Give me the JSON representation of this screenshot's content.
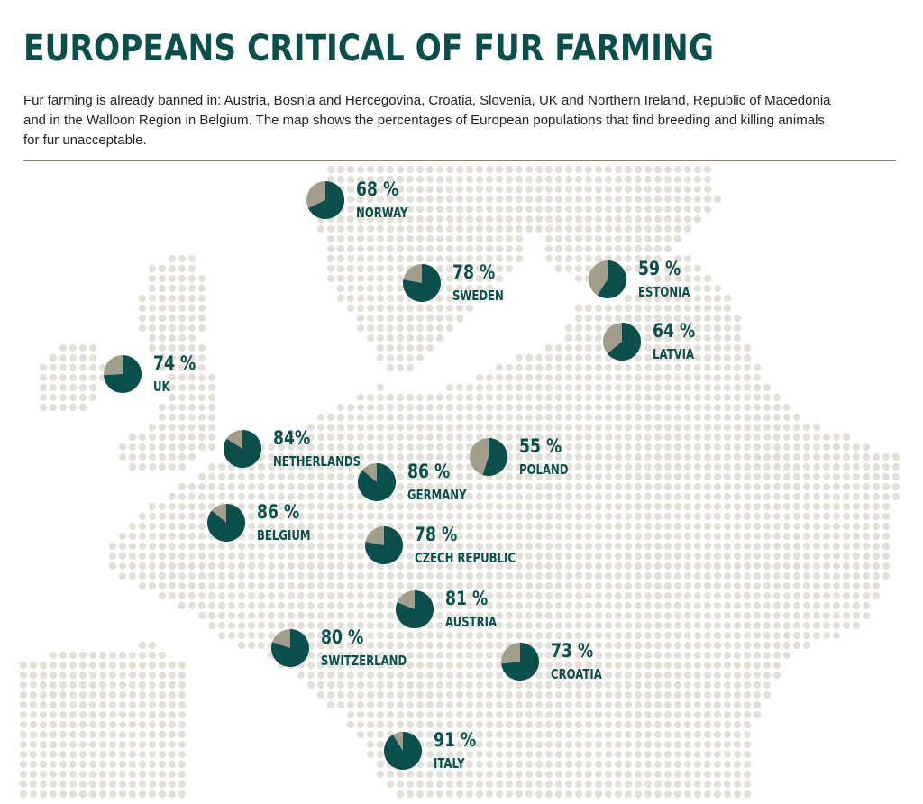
{
  "title": "EUROPEANS CRITICAL OF FUR FARMING",
  "intro": "Fur farming is already banned in: Austria, Bosnia and Hercegovina, Croatia, Slovenia, UK and Northern Ireland, Republic of Macedonia and in the Walloon Region in Belgium. The map shows the percentages of European populations that find breeding and killing animals for fur unacceptable.",
  "colors": {
    "pie_fill": "#0b4f4c",
    "pie_rest": "#a39d8b",
    "map_dot": "#e3e0da",
    "text_accent": "#0b4f4c",
    "rule": "#8a8474"
  },
  "countries": [
    {
      "name": "NORWAY",
      "percent": 68,
      "label": "68 %"
    },
    {
      "name": "SWEDEN",
      "percent": 78,
      "label": "78 %"
    },
    {
      "name": "ESTONIA",
      "percent": 59,
      "label": "59 %"
    },
    {
      "name": "LATVIA",
      "percent": 64,
      "label": "64 %"
    },
    {
      "name": "UK",
      "percent": 74,
      "label": "74 %"
    },
    {
      "name": "NETHERLANDS",
      "percent": 84,
      "label": "84%"
    },
    {
      "name": "POLAND",
      "percent": 55,
      "label": "55 %"
    },
    {
      "name": "GERMANY",
      "percent": 86,
      "label": "86 %"
    },
    {
      "name": "BELGIUM",
      "percent": 86,
      "label": "86 %"
    },
    {
      "name": "CZECH REPUBLIC",
      "percent": 78,
      "label": "78 %"
    },
    {
      "name": "AUSTRIA",
      "percent": 81,
      "label": "81 %"
    },
    {
      "name": "SWITZERLAND",
      "percent": 80,
      "label": "80 %"
    },
    {
      "name": "CROATIA",
      "percent": 73,
      "label": "73 %"
    },
    {
      "name": "ITALY",
      "percent": 91,
      "label": "91 %"
    }
  ]
}
